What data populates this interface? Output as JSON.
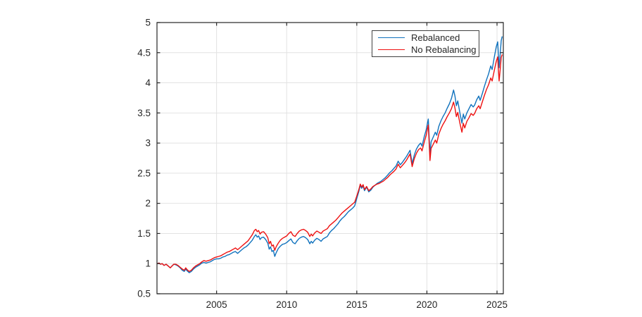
{
  "figure": {
    "background": "#ffffff"
  },
  "chart_data": {
    "type": "line",
    "title": "",
    "xlabel": "",
    "ylabel": "",
    "grid": true,
    "axis_color": "#262626",
    "grid_color": "#e2e2e2",
    "background": "#ffffff",
    "xlim": [
      2000.75,
      2025.45
    ],
    "ylim": [
      0.5,
      5
    ],
    "x_ticks": {
      "values": [
        2005,
        2010,
        2015,
        2020,
        2025
      ],
      "labels": [
        "2005",
        "2010",
        "2015",
        "2020",
        "2025"
      ]
    },
    "y_ticks": {
      "values": [
        0.5,
        1,
        1.5,
        2,
        2.5,
        3,
        3.5,
        4,
        4.5,
        5
      ],
      "labels": [
        "0.5",
        "1",
        "1.5",
        "2",
        "2.5",
        "3",
        "3.5",
        "4",
        "4.5",
        "5"
      ]
    },
    "legend": {
      "position": "top-right",
      "entries": [
        "Rebalanced",
        "No Rebalancing"
      ]
    },
    "x": [
      2000.78,
      2000.9,
      2001.0,
      2001.12,
      2001.25,
      2001.4,
      2001.55,
      2001.7,
      2001.82,
      2001.95,
      2002.1,
      2002.25,
      2002.4,
      2002.55,
      2002.7,
      2002.8,
      2002.9,
      2003.05,
      2003.2,
      2003.35,
      2003.5,
      2003.65,
      2003.8,
      2003.95,
      2004.1,
      2004.25,
      2004.4,
      2004.55,
      2004.7,
      2004.85,
      2005.0,
      2005.15,
      2005.3,
      2005.45,
      2005.6,
      2005.75,
      2005.9,
      2006.05,
      2006.2,
      2006.35,
      2006.5,
      2006.65,
      2006.8,
      2006.95,
      2007.1,
      2007.25,
      2007.4,
      2007.55,
      2007.7,
      2007.8,
      2007.9,
      2008.0,
      2008.1,
      2008.2,
      2008.35,
      2008.5,
      2008.65,
      2008.75,
      2008.85,
      2008.95,
      2009.05,
      2009.15,
      2009.25,
      2009.4,
      2009.55,
      2009.7,
      2009.85,
      2010.0,
      2010.15,
      2010.3,
      2010.45,
      2010.6,
      2010.75,
      2010.9,
      2011.05,
      2011.2,
      2011.35,
      2011.5,
      2011.65,
      2011.75,
      2011.85,
      2012.0,
      2012.15,
      2012.3,
      2012.45,
      2012.6,
      2012.75,
      2012.9,
      2013.05,
      2013.2,
      2013.35,
      2013.5,
      2013.65,
      2013.8,
      2013.95,
      2014.1,
      2014.25,
      2014.4,
      2014.55,
      2014.7,
      2014.85,
      2015.0,
      2015.15,
      2015.25,
      2015.35,
      2015.45,
      2015.55,
      2015.7,
      2015.85,
      2016.0,
      2016.15,
      2016.3,
      2016.45,
      2016.6,
      2016.75,
      2016.9,
      2017.05,
      2017.2,
      2017.35,
      2017.5,
      2017.65,
      2017.8,
      2017.95,
      2018.1,
      2018.25,
      2018.4,
      2018.55,
      2018.7,
      2018.8,
      2018.95,
      2019.1,
      2019.25,
      2019.4,
      2019.55,
      2019.65,
      2019.8,
      2019.95,
      2020.1,
      2020.22,
      2020.3,
      2020.45,
      2020.6,
      2020.7,
      2020.85,
      2021.0,
      2021.15,
      2021.3,
      2021.45,
      2021.6,
      2021.75,
      2021.9,
      2022.0,
      2022.1,
      2022.2,
      2022.35,
      2022.5,
      2022.6,
      2022.7,
      2022.85,
      2023.0,
      2023.15,
      2023.3,
      2023.4,
      2023.55,
      2023.7,
      2023.8,
      2023.95,
      2024.1,
      2024.25,
      2024.4,
      2024.55,
      2024.65,
      2024.8,
      2024.95,
      2025.05,
      2025.15,
      2025.22,
      2025.3,
      2025.37
    ],
    "series": [
      {
        "name": "Rebalanced",
        "color": "#1072bd",
        "values": [
          1.0,
          1.01,
          0.99,
          1.0,
          0.97,
          0.99,
          0.96,
          0.93,
          0.96,
          0.99,
          0.98,
          0.96,
          0.93,
          0.89,
          0.87,
          0.91,
          0.88,
          0.85,
          0.87,
          0.91,
          0.94,
          0.96,
          0.98,
          1.01,
          1.02,
          1.01,
          1.02,
          1.03,
          1.05,
          1.07,
          1.08,
          1.08,
          1.09,
          1.11,
          1.12,
          1.14,
          1.15,
          1.17,
          1.19,
          1.2,
          1.17,
          1.2,
          1.23,
          1.26,
          1.28,
          1.31,
          1.35,
          1.39,
          1.45,
          1.48,
          1.44,
          1.46,
          1.4,
          1.43,
          1.44,
          1.4,
          1.34,
          1.24,
          1.28,
          1.2,
          1.22,
          1.12,
          1.18,
          1.25,
          1.29,
          1.32,
          1.33,
          1.35,
          1.38,
          1.41,
          1.35,
          1.33,
          1.38,
          1.42,
          1.44,
          1.45,
          1.43,
          1.4,
          1.33,
          1.37,
          1.34,
          1.39,
          1.42,
          1.4,
          1.37,
          1.41,
          1.43,
          1.45,
          1.51,
          1.55,
          1.58,
          1.62,
          1.66,
          1.71,
          1.75,
          1.78,
          1.82,
          1.86,
          1.89,
          1.92,
          1.96,
          2.08,
          2.2,
          2.3,
          2.25,
          2.29,
          2.21,
          2.27,
          2.19,
          2.22,
          2.27,
          2.3,
          2.33,
          2.35,
          2.37,
          2.4,
          2.43,
          2.47,
          2.51,
          2.54,
          2.58,
          2.62,
          2.7,
          2.64,
          2.68,
          2.73,
          2.78,
          2.84,
          2.88,
          2.66,
          2.8,
          2.9,
          2.96,
          3.0,
          2.95,
          3.1,
          3.22,
          3.4,
          2.82,
          3.02,
          3.1,
          3.18,
          3.13,
          3.28,
          3.37,
          3.44,
          3.5,
          3.58,
          3.65,
          3.74,
          3.88,
          3.78,
          3.62,
          3.7,
          3.5,
          3.33,
          3.48,
          3.4,
          3.5,
          3.57,
          3.64,
          3.6,
          3.63,
          3.72,
          3.78,
          3.71,
          3.82,
          3.94,
          4.05,
          4.15,
          4.28,
          4.22,
          4.42,
          4.6,
          4.68,
          4.25,
          4.45,
          4.7,
          4.77
        ]
      },
      {
        "name": "No Rebalancing",
        "color": "#ee1111",
        "values": [
          1.0,
          1.01,
          0.99,
          1.0,
          0.97,
          0.99,
          0.96,
          0.93,
          0.96,
          0.99,
          0.99,
          0.97,
          0.94,
          0.91,
          0.89,
          0.93,
          0.9,
          0.87,
          0.89,
          0.93,
          0.96,
          0.98,
          1.0,
          1.03,
          1.05,
          1.04,
          1.05,
          1.06,
          1.08,
          1.1,
          1.11,
          1.12,
          1.13,
          1.15,
          1.17,
          1.19,
          1.2,
          1.22,
          1.24,
          1.26,
          1.23,
          1.26,
          1.29,
          1.32,
          1.35,
          1.38,
          1.43,
          1.48,
          1.55,
          1.57,
          1.53,
          1.55,
          1.49,
          1.52,
          1.53,
          1.49,
          1.43,
          1.33,
          1.37,
          1.29,
          1.31,
          1.22,
          1.28,
          1.34,
          1.39,
          1.42,
          1.44,
          1.46,
          1.5,
          1.53,
          1.47,
          1.45,
          1.5,
          1.54,
          1.56,
          1.57,
          1.55,
          1.52,
          1.45,
          1.49,
          1.46,
          1.51,
          1.54,
          1.52,
          1.5,
          1.54,
          1.56,
          1.58,
          1.63,
          1.66,
          1.69,
          1.72,
          1.76,
          1.8,
          1.84,
          1.87,
          1.9,
          1.93,
          1.96,
          1.99,
          2.02,
          2.12,
          2.23,
          2.32,
          2.27,
          2.31,
          2.23,
          2.28,
          2.21,
          2.24,
          2.28,
          2.3,
          2.32,
          2.33,
          2.35,
          2.37,
          2.4,
          2.43,
          2.47,
          2.5,
          2.53,
          2.57,
          2.65,
          2.59,
          2.63,
          2.67,
          2.72,
          2.78,
          2.82,
          2.61,
          2.74,
          2.83,
          2.89,
          2.92,
          2.87,
          3.01,
          3.13,
          3.3,
          2.71,
          2.91,
          2.98,
          3.05,
          3.0,
          3.15,
          3.24,
          3.31,
          3.37,
          3.44,
          3.5,
          3.57,
          3.68,
          3.58,
          3.44,
          3.51,
          3.33,
          3.18,
          3.33,
          3.25,
          3.36,
          3.42,
          3.49,
          3.46,
          3.49,
          3.57,
          3.62,
          3.57,
          3.68,
          3.79,
          3.89,
          3.97,
          4.08,
          4.03,
          4.2,
          4.36,
          4.43,
          4.03,
          4.2,
          4.42,
          4.47
        ]
      }
    ]
  }
}
